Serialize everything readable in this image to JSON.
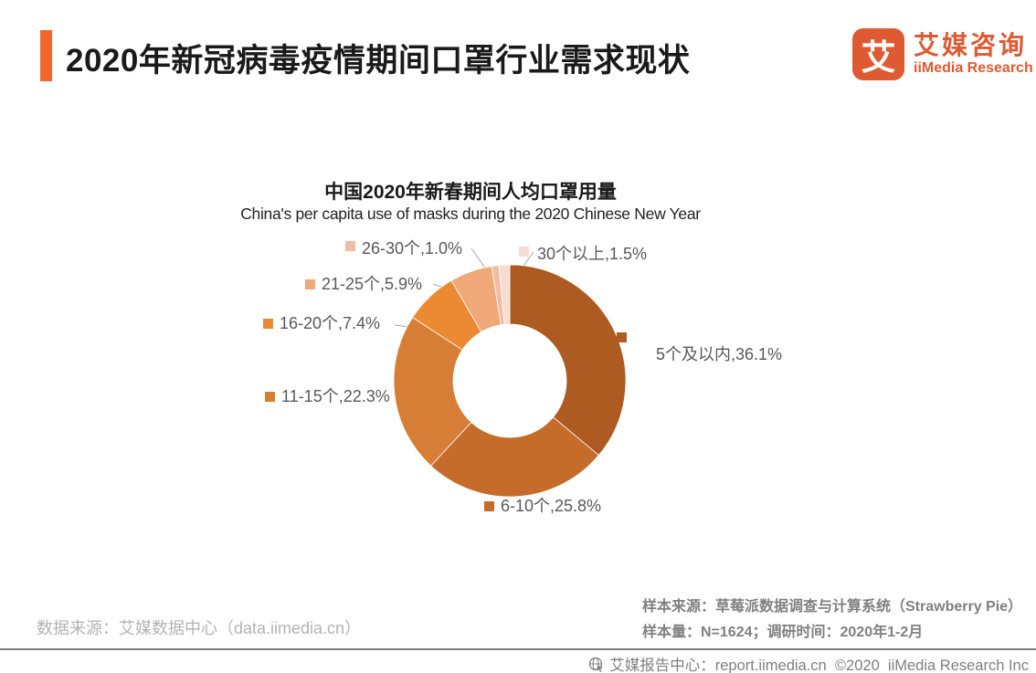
{
  "header": {
    "title": "2020年新冠病毒疫情期间口罩行业需求现状"
  },
  "brand": {
    "logo_char": "艾",
    "name_cn": "艾媒咨询",
    "name_en": "iiMedia Research",
    "color": "#DE5A33"
  },
  "footnotes": {
    "data_source": "数据来源：艾媒数据中心（data.iimedia.cn）",
    "sample_source": "样本来源：草莓派数据调查与计算系统（Strawberry Pie）",
    "sample_size": "样本量：N=1624；调研时间：2020年1-2月"
  },
  "footer": {
    "text": "艾媒报告中心：report.iimedia.cn  ©2020  iiMedia Research Inc"
  },
  "chart_data": {
    "type": "pie",
    "subtype": "donut",
    "title": "中国2020年新春期间人均口罩用量",
    "subtitle": "China's per capita use of masks during the 2020 Chinese New Year",
    "unit": "%",
    "start_angle_deg": 0,
    "direction": "clockwise",
    "legend_position": "data-labels",
    "segments": [
      {
        "label": "5个及以内",
        "value": 36.1,
        "color": "#AD5B21",
        "display": "5个及以内,36.1%"
      },
      {
        "label": "6-10个",
        "value": 25.8,
        "color": "#C56C2B",
        "display": "6-10个,25.8%"
      },
      {
        "label": "11-15个",
        "value": 22.3,
        "color": "#D67E35",
        "display": "11-15个,22.3%"
      },
      {
        "label": "16-20个",
        "value": 7.4,
        "color": "#EC8933",
        "display": "16-20个,7.4%"
      },
      {
        "label": "21-25个",
        "value": 5.9,
        "color": "#F0A878",
        "display": "21-25个,5.9%"
      },
      {
        "label": "26-30个",
        "value": 1.0,
        "color": "#F2BCA2",
        "display": "26-30个,1.0%"
      },
      {
        "label": "30个以上",
        "value": 1.5,
        "color": "#F7DCD4",
        "display": "30个以上,1.5%"
      }
    ]
  }
}
